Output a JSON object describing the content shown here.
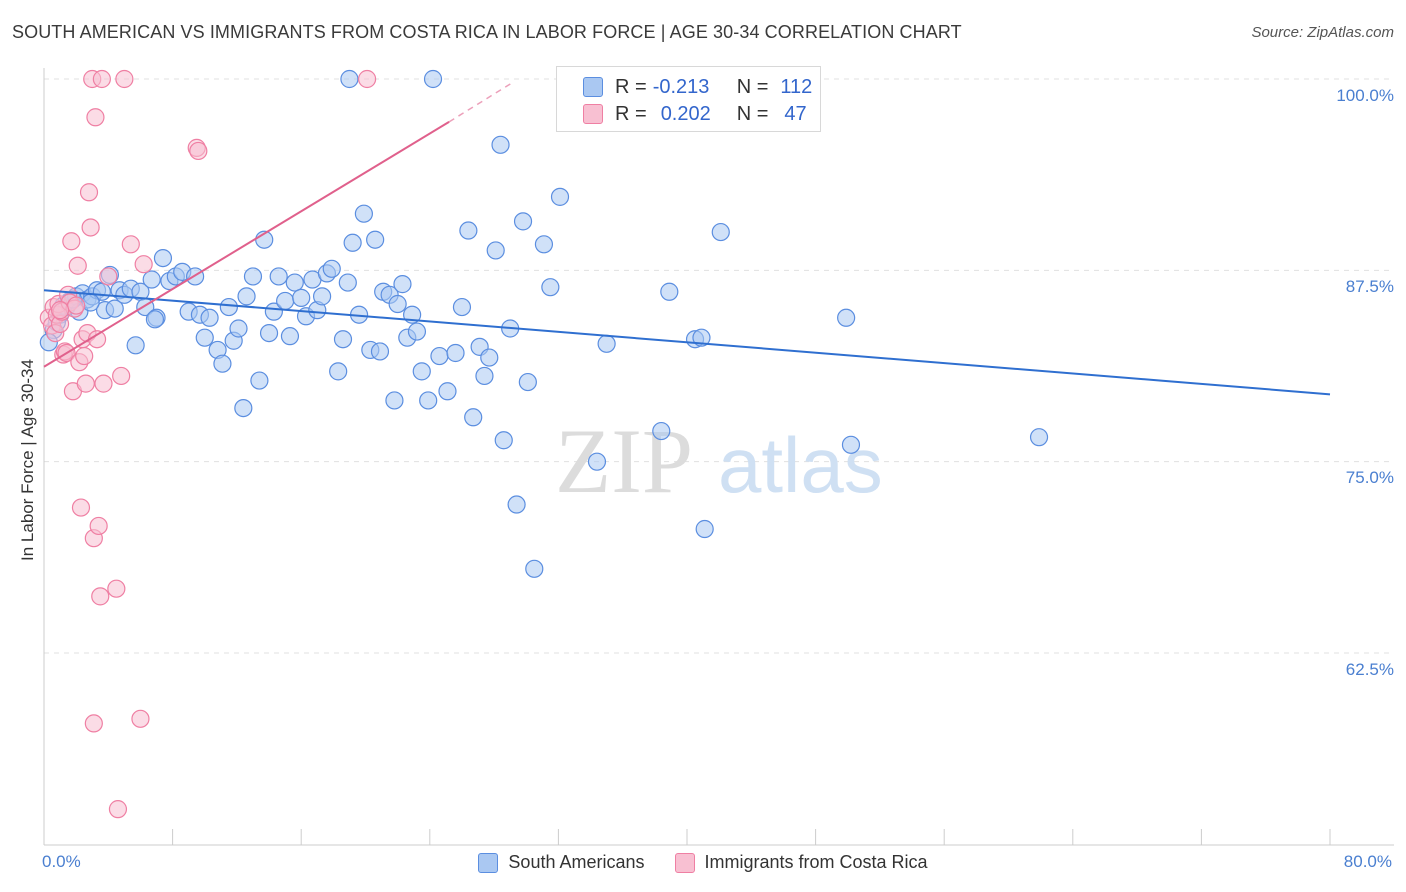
{
  "title": "SOUTH AMERICAN VS IMMIGRANTS FROM COSTA RICA IN LABOR FORCE | AGE 30-34 CORRELATION CHART",
  "source": "Source: ZipAtlas.com",
  "watermark": {
    "zip": "ZIP",
    "atlas": "atlas"
  },
  "colors": {
    "blue": "#5b8ee0",
    "blue_fill": "#aac8f2",
    "blue_line": "#2f6fd0",
    "pink": "#ef7fa3",
    "pink_fill": "#f8c0d2",
    "pink_line": "#e0608c",
    "tick_text": "#4a7fd0",
    "grid": "#e0e0e0"
  },
  "legend_top": {
    "rows": [
      {
        "r_label": "R =",
        "r_value": "-0.213",
        "n_label": "N =",
        "n_value": "112"
      },
      {
        "r_label": "R =",
        "r_value": "0.202",
        "n_label": "N =",
        "n_value": "47"
      }
    ]
  },
  "legend_bottom": {
    "series1": "South Americans",
    "series2": "Immigrants from Costa Rica"
  },
  "chart_data": {
    "type": "scatter",
    "title": "SOUTH AMERICAN VS IMMIGRANTS FROM COSTA RICA IN LABOR FORCE | AGE 30-34 CORRELATION CHART",
    "xlabel": "",
    "ylabel": "In Labor Force | Age 30-34",
    "xlim": [
      0,
      80
    ],
    "ylim": [
      51.5,
      101.5
    ],
    "y_ticks": [
      62.5,
      75.0,
      87.5,
      100.0
    ],
    "y_tick_labels": [
      "62.5%",
      "75.0%",
      "87.5%",
      "100.0%"
    ],
    "x_tick_labels": [
      "0.0%",
      "80.0%"
    ],
    "series": [
      {
        "name": "South Americans",
        "r": -0.213,
        "n": 112,
        "trend": {
          "x": [
            0,
            80
          ],
          "y": [
            86.2,
            79.4
          ]
        },
        "points": [
          [
            0.6,
            83.6
          ],
          [
            1.0,
            84.6
          ],
          [
            1.2,
            85.2
          ],
          [
            1.4,
            85.1
          ],
          [
            1.6,
            85.5
          ],
          [
            2.0,
            85.8
          ],
          [
            2.2,
            84.8
          ],
          [
            2.4,
            86.0
          ],
          [
            2.7,
            85.6
          ],
          [
            3.0,
            85.8
          ],
          [
            3.3,
            86.2
          ],
          [
            3.6,
            86.1
          ],
          [
            3.8,
            84.9
          ],
          [
            4.1,
            87.2
          ],
          [
            4.4,
            85.0
          ],
          [
            4.7,
            86.2
          ],
          [
            5.0,
            85.9
          ],
          [
            5.4,
            86.3
          ],
          [
            5.7,
            82.6
          ],
          [
            6.0,
            86.1
          ],
          [
            6.3,
            85.1
          ],
          [
            6.7,
            86.9
          ],
          [
            7.0,
            84.4
          ],
          [
            7.4,
            88.3
          ],
          [
            7.8,
            86.8
          ],
          [
            8.2,
            87.1
          ],
          [
            8.6,
            87.4
          ],
          [
            9.0,
            84.8
          ],
          [
            9.4,
            87.1
          ],
          [
            9.7,
            84.6
          ],
          [
            10.0,
            83.1
          ],
          [
            10.3,
            84.4
          ],
          [
            10.8,
            82.3
          ],
          [
            11.1,
            81.4
          ],
          [
            11.5,
            85.1
          ],
          [
            11.8,
            82.9
          ],
          [
            12.1,
            83.7
          ],
          [
            12.4,
            78.5
          ],
          [
            12.6,
            85.8
          ],
          [
            13.0,
            87.1
          ],
          [
            13.4,
            80.3
          ],
          [
            13.7,
            89.5
          ],
          [
            14.0,
            83.4
          ],
          [
            14.3,
            84.8
          ],
          [
            14.6,
            87.1
          ],
          [
            15.0,
            85.5
          ],
          [
            15.3,
            83.2
          ],
          [
            15.6,
            86.7
          ],
          [
            16.0,
            85.7
          ],
          [
            16.3,
            84.5
          ],
          [
            16.7,
            86.9
          ],
          [
            17.0,
            84.9
          ],
          [
            17.3,
            85.8
          ],
          [
            17.6,
            87.3
          ],
          [
            17.9,
            87.6
          ],
          [
            18.3,
            80.9
          ],
          [
            18.6,
            83.0
          ],
          [
            18.9,
            86.7
          ],
          [
            19.2,
            89.3
          ],
          [
            19.6,
            84.6
          ],
          [
            19.9,
            91.2
          ],
          [
            20.3,
            82.3
          ],
          [
            20.6,
            89.5
          ],
          [
            20.9,
            82.2
          ],
          [
            21.1,
            86.1
          ],
          [
            21.5,
            85.9
          ],
          [
            21.8,
            79.0
          ],
          [
            22.0,
            85.3
          ],
          [
            22.3,
            86.6
          ],
          [
            22.6,
            83.1
          ],
          [
            22.9,
            84.6
          ],
          [
            23.2,
            83.5
          ],
          [
            23.5,
            80.9
          ],
          [
            23.9,
            79.0
          ],
          [
            24.2,
            100.0
          ],
          [
            24.6,
            81.9
          ],
          [
            25.1,
            79.6
          ],
          [
            25.6,
            82.1
          ],
          [
            26.0,
            85.1
          ],
          [
            26.4,
            90.1
          ],
          [
            26.7,
            77.9
          ],
          [
            27.1,
            82.5
          ],
          [
            27.4,
            80.6
          ],
          [
            27.7,
            81.8
          ],
          [
            28.1,
            88.8
          ],
          [
            28.4,
            95.7
          ],
          [
            28.6,
            76.4
          ],
          [
            29.0,
            83.7
          ],
          [
            29.4,
            72.2
          ],
          [
            29.8,
            90.7
          ],
          [
            30.1,
            80.2
          ],
          [
            30.5,
            68.0
          ],
          [
            31.1,
            89.2
          ],
          [
            31.5,
            86.4
          ],
          [
            32.1,
            92.3
          ],
          [
            34.4,
            75.0
          ],
          [
            35.0,
            82.7
          ],
          [
            38.4,
            77.0
          ],
          [
            38.9,
            86.1
          ],
          [
            40.5,
            83.0
          ],
          [
            40.9,
            83.1
          ],
          [
            41.1,
            70.6
          ],
          [
            42.1,
            90.0
          ],
          [
            49.9,
            84.4
          ],
          [
            50.2,
            76.1
          ],
          [
            61.9,
            76.6
          ],
          [
            19.0,
            100.0
          ],
          [
            0.8,
            84.1
          ],
          [
            1.8,
            85.6
          ],
          [
            0.3,
            82.8
          ],
          [
            2.9,
            85.4
          ],
          [
            6.9,
            84.3
          ]
        ]
      },
      {
        "name": "Immigrants from Costa Rica",
        "r": 0.202,
        "n": 47,
        "trend": {
          "x": [
            0,
            25.2,
            29.2
          ],
          "y": [
            81.2,
            97.2,
            99.8
          ]
        },
        "points": [
          [
            0.3,
            84.4
          ],
          [
            0.5,
            83.9
          ],
          [
            0.6,
            85.1
          ],
          [
            0.7,
            83.4
          ],
          [
            0.8,
            84.6
          ],
          [
            0.9,
            85.3
          ],
          [
            1.0,
            84.0
          ],
          [
            1.1,
            84.8
          ],
          [
            1.2,
            82.0
          ],
          [
            1.3,
            82.2
          ],
          [
            1.4,
            82.1
          ],
          [
            1.5,
            85.9
          ],
          [
            1.6,
            85.4
          ],
          [
            1.7,
            89.4
          ],
          [
            1.8,
            79.6
          ],
          [
            1.9,
            85.0
          ],
          [
            2.0,
            85.2
          ],
          [
            2.1,
            87.8
          ],
          [
            2.2,
            81.5
          ],
          [
            2.3,
            72.0
          ],
          [
            2.4,
            83.0
          ],
          [
            2.5,
            81.9
          ],
          [
            2.6,
            80.1
          ],
          [
            2.7,
            83.4
          ],
          [
            2.8,
            92.6
          ],
          [
            2.9,
            90.3
          ],
          [
            3.0,
            100.0
          ],
          [
            3.1,
            70.0
          ],
          [
            3.2,
            97.5
          ],
          [
            3.3,
            83.0
          ],
          [
            3.4,
            70.8
          ],
          [
            3.5,
            66.2
          ],
          [
            3.6,
            100.0
          ],
          [
            3.7,
            80.1
          ],
          [
            4.0,
            87.1
          ],
          [
            4.5,
            66.7
          ],
          [
            4.8,
            80.6
          ],
          [
            5.0,
            100.0
          ],
          [
            5.4,
            89.2
          ],
          [
            6.2,
            87.9
          ],
          [
            9.5,
            95.5
          ],
          [
            9.6,
            95.3
          ],
          [
            20.1,
            100.0
          ],
          [
            3.1,
            57.9
          ],
          [
            6.0,
            58.2
          ],
          [
            4.6,
            52.3
          ],
          [
            1.0,
            84.9
          ]
        ]
      }
    ]
  }
}
